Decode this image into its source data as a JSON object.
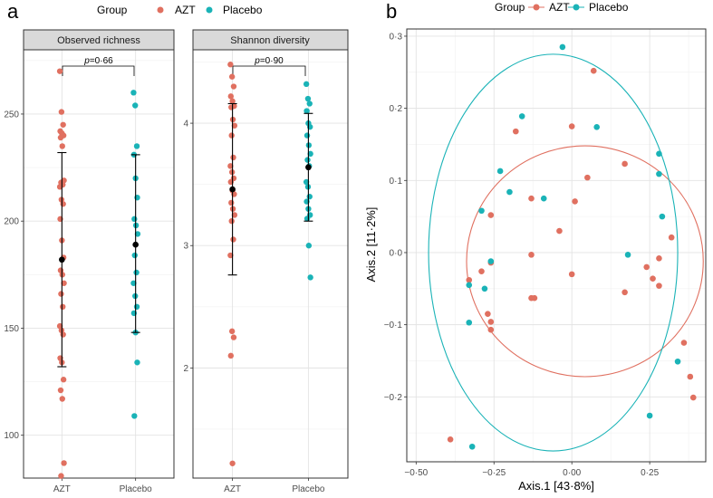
{
  "panel_labels": {
    "a": "a",
    "b": "b"
  },
  "legend": {
    "title": "Group",
    "items": [
      {
        "label": "AZT",
        "color": "#E07060"
      },
      {
        "label": "Placebo",
        "color": "#1AB3B7"
      }
    ]
  },
  "chart_data": [
    {
      "type": "scatter",
      "title": "Observed richness",
      "categories": [
        "AZT",
        "Placebo"
      ],
      "ylim": [
        80,
        280
      ],
      "yticks": [
        100,
        150,
        200,
        250
      ],
      "pvalue": {
        "prefix": "p",
        "text": "=0·66"
      },
      "series": [
        {
          "name": "AZT",
          "color": "#E07060",
          "values": [
            270,
            251,
            245,
            242,
            241,
            240,
            239,
            235,
            219,
            218,
            217,
            216,
            210,
            208,
            201,
            191,
            183,
            177,
            175,
            171,
            166,
            160,
            151,
            149,
            147,
            136,
            134,
            126,
            121,
            117,
            87,
            81
          ],
          "mean": 182,
          "err_low": 132,
          "err_high": 232
        },
        {
          "name": "Placebo",
          "color": "#1AB3B7",
          "values": [
            260,
            254,
            235,
            231,
            220,
            211,
            201,
            198,
            194,
            184,
            176,
            171,
            165,
            160,
            157,
            148,
            134,
            109
          ],
          "mean": 189,
          "err_low": 148,
          "err_high": 231
        }
      ]
    },
    {
      "type": "scatter",
      "title": "Shannon diversity",
      "categories": [
        "AZT",
        "Placebo"
      ],
      "ylim": [
        1.1,
        4.6
      ],
      "yticks": [
        2,
        3,
        4
      ],
      "pvalue": {
        "prefix": "p",
        "text": "=0·90"
      },
      "series": [
        {
          "name": "AZT",
          "color": "#E07060",
          "values": [
            4.48,
            4.38,
            4.3,
            4.22,
            4.18,
            4.14,
            4.13,
            4.03,
            3.98,
            3.9,
            3.72,
            3.65,
            3.6,
            3.55,
            3.52,
            3.45,
            3.42,
            3.35,
            3.3,
            3.25,
            3.2,
            3.05,
            2.92,
            2.3,
            2.25,
            2.1,
            1.22
          ],
          "mean": 3.46,
          "err_low": 2.76,
          "err_high": 4.16
        },
        {
          "name": "Placebo",
          "color": "#1AB3B7",
          "values": [
            4.32,
            4.2,
            4.16,
            4.1,
            4.0,
            3.97,
            3.9,
            3.82,
            3.75,
            3.7,
            3.65,
            3.52,
            3.48,
            3.4,
            3.36,
            3.3,
            3.25,
            3.22,
            3.0,
            2.74
          ],
          "mean": 3.64,
          "err_low": 3.2,
          "err_high": 4.08
        }
      ]
    },
    {
      "type": "scatter",
      "title": "",
      "xlabel": "Axis.1 [43·8%]",
      "ylabel": "Axis.2 [11·2%]",
      "xlim": [
        -0.53,
        0.43
      ],
      "ylim": [
        -0.29,
        0.31
      ],
      "xticks": [
        -0.5,
        -0.25,
        0,
        0.25
      ],
      "xtick_labels": [
        "−0·50",
        "−0·25",
        "0·00",
        "0·25"
      ],
      "yticks": [
        -0.2,
        -0.1,
        0,
        0.1,
        0.2,
        0.3
      ],
      "ytick_labels": [
        "−0·2",
        "−0·1",
        "0·0",
        "0·1",
        "0·2",
        "0·3"
      ],
      "series": [
        {
          "name": "AZT",
          "color": "#E07060",
          "x": [
            0.07,
            0.0,
            -0.18,
            0.17,
            -0.13,
            0.05,
            0.01,
            -0.26,
            -0.13,
            -0.04,
            0.32,
            0.28,
            -0.13,
            0.24,
            -0.26,
            -0.33,
            -0.29,
            0.26,
            0.17,
            0.28,
            0.0,
            -0.12,
            -0.27,
            -0.26,
            -0.26,
            0.36,
            0.38,
            0.39,
            -0.39
          ],
          "y": [
            0.252,
            0.175,
            0.168,
            0.123,
            0.075,
            0.104,
            0.071,
            0.052,
            -0.003,
            0.03,
            0.021,
            -0.008,
            -0.063,
            -0.02,
            -0.014,
            -0.038,
            -0.026,
            -0.036,
            -0.055,
            -0.046,
            -0.03,
            -0.063,
            -0.085,
            -0.096,
            -0.107,
            -0.125,
            -0.172,
            -0.201,
            -0.259
          ]
        },
        {
          "name": "Placebo",
          "color": "#1AB3B7",
          "x": [
            -0.03,
            0.08,
            -0.16,
            0.28,
            -0.23,
            -0.2,
            0.28,
            -0.09,
            -0.29,
            0.29,
            0.18,
            -0.26,
            -0.28,
            -0.33,
            -0.33,
            0.34,
            0.25,
            -0.32
          ],
          "y": [
            0.285,
            0.174,
            0.189,
            0.137,
            0.113,
            0.084,
            0.109,
            0.075,
            0.058,
            0.05,
            -0.003,
            -0.012,
            -0.05,
            -0.045,
            -0.097,
            -0.151,
            -0.226,
            -0.269
          ]
        }
      ],
      "ellipses": [
        {
          "name": "AZT",
          "color": "#E07060",
          "cx": 0.042,
          "cy": -0.012,
          "rx": 0.38,
          "ry": 0.16
        },
        {
          "name": "Placebo",
          "color": "#1AB3B7",
          "cx": -0.06,
          "cy": 0.0,
          "rx": 0.4,
          "ry": 0.275
        }
      ]
    }
  ]
}
